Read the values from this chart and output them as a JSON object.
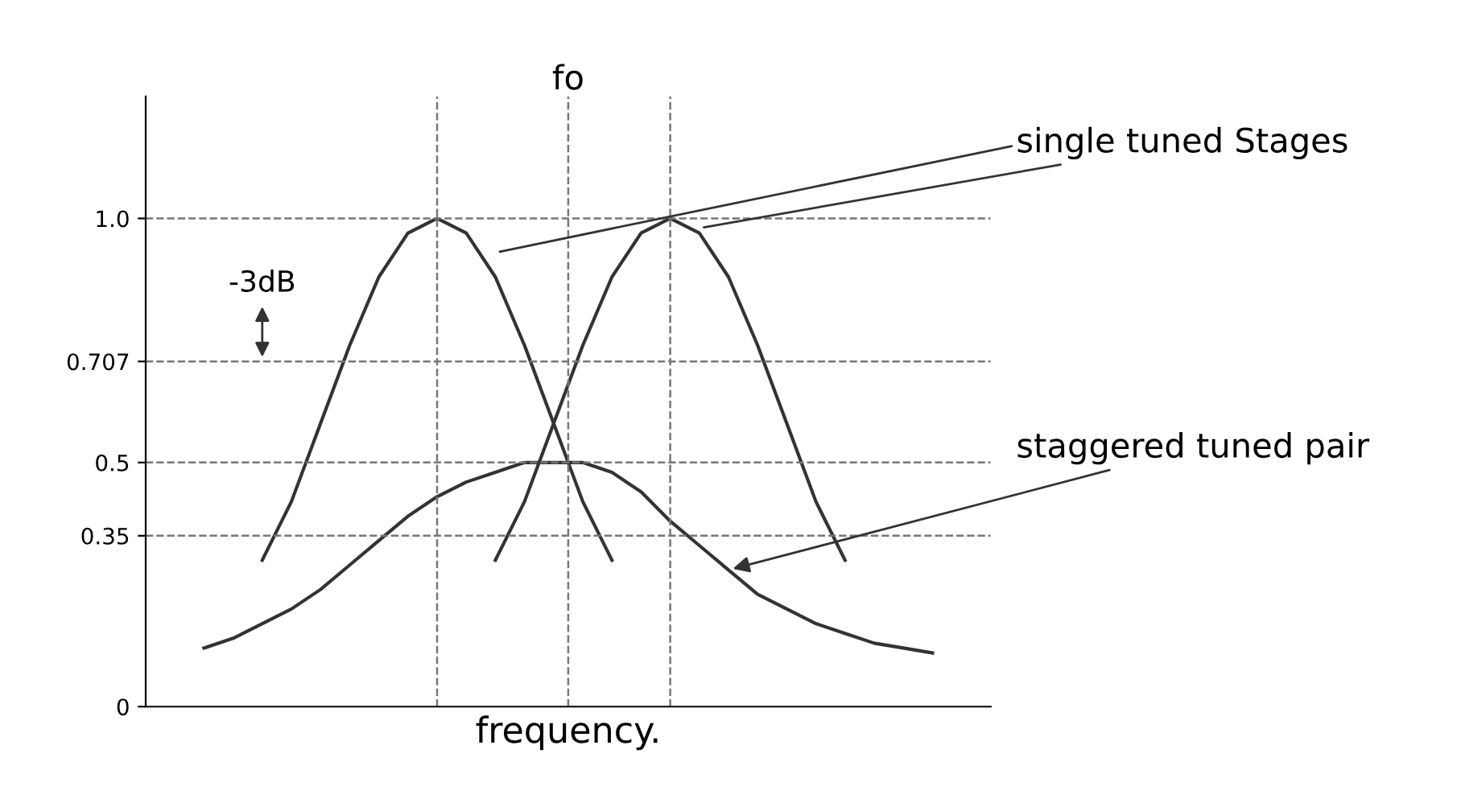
{
  "chart_data": {
    "type": "line",
    "xlabel": "frequency.",
    "categories": [
      null,
      null,
      null,
      null,
      null,
      null,
      null,
      null,
      null,
      null,
      null,
      null,
      null,
      null,
      null,
      null,
      null,
      null,
      null,
      null,
      null,
      null,
      null,
      null,
      null,
      null
    ],
    "series": [
      {
        "color": "#333333",
        "values": [
          null,
          null,
          0.3,
          0.42,
          0.58,
          0.74,
          0.88,
          0.97,
          1.0,
          0.97,
          0.88,
          0.74,
          0.58,
          0.42,
          0.3,
          null,
          null,
          null,
          null,
          null,
          null,
          null,
          null,
          null,
          null,
          null
        ]
      },
      {
        "color": "#333333",
        "values": [
          null,
          null,
          null,
          null,
          null,
          null,
          null,
          null,
          null,
          null,
          0.3,
          0.42,
          0.58,
          0.74,
          0.88,
          0.97,
          1.0,
          0.97,
          0.88,
          0.74,
          0.58,
          0.42,
          0.3,
          null,
          null,
          null
        ]
      },
      {
        "color": "#333333",
        "values": [
          0.12,
          0.14,
          0.17,
          0.2,
          0.24,
          0.29,
          0.34,
          0.39,
          0.43,
          0.46,
          0.48,
          0.5,
          0.5,
          0.5,
          0.48,
          0.44,
          0.38,
          0.33,
          0.28,
          0.23,
          0.2,
          0.17,
          0.15,
          0.13,
          0.12,
          0.11
        ]
      }
    ],
    "ylim": [
      0,
      1.25
    ],
    "yticks": [
      0,
      {
        "value": 0.35,
        "label": "0.35"
      },
      {
        "value": 0.5,
        "label": "0.5"
      },
      {
        "value": 0.707,
        "label": "0.707"
      },
      {
        "value": 1.0,
        "label": "1.0"
      }
    ],
    "ref_lines": [
      {
        "axis": "y",
        "value": 1.0,
        "line_style": "dashed",
        "color": "#777777"
      },
      {
        "axis": "y",
        "value": 0.707,
        "line_style": "dashed",
        "color": "#777777"
      },
      {
        "axis": "y",
        "value": 0.5,
        "line_style": "dashed",
        "color": "#777777"
      },
      {
        "axis": "y",
        "value": 0.35,
        "line_style": "dashed",
        "color": "#777777"
      }
    ],
    "annotations": [
      "-3dB",
      "single tuned Stages",
      "staggered tuned pair",
      "fo"
    ],
    "grid": false,
    "legend": false,
    "tick_labels": "y",
    "marker": "none",
    "line_style": "solid"
  }
}
